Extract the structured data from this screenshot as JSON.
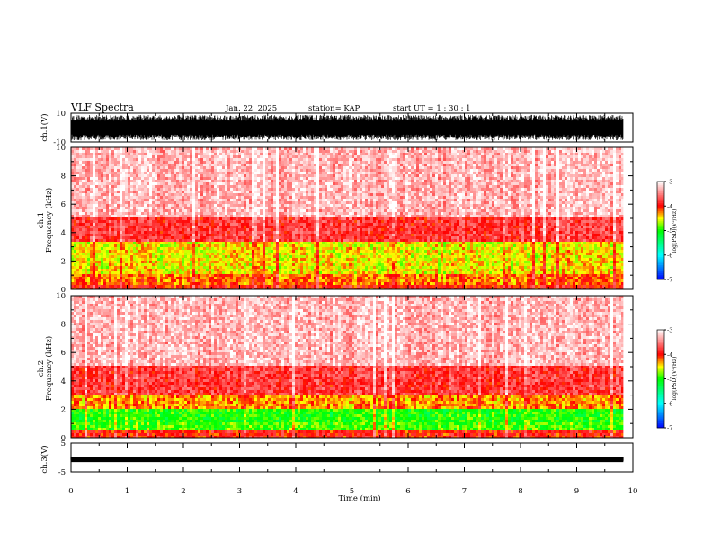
{
  "header": {
    "title": "VLF Spectra",
    "date": "Jan. 22, 2025",
    "station": "station= KAP",
    "start": "start  UT =   1 : 30 : 1"
  },
  "chart_data": [
    {
      "type": "line",
      "panel": "ch1-waveform",
      "ylabel": "ch.1(V)",
      "ylim": [
        -10,
        10
      ],
      "yticks": [
        "10",
        "-10"
      ],
      "xlim": [
        0,
        10
      ],
      "data_extent_min": 9.83,
      "description_values": {
        "typical_min": -8,
        "typical_max": 8
      }
    },
    {
      "type": "heatmap",
      "panel": "ch1-spectrogram",
      "ylabel": "ch.1\nFrequency (kHz)",
      "ylabel_top": "ch.1",
      "ylabel_bottom": "Frequency (kHz)",
      "ylim": [
        0,
        10
      ],
      "yticks": [
        "0",
        "2",
        "4",
        "6",
        "8",
        "10"
      ],
      "xlim": [
        0,
        10
      ],
      "bands": [
        {
          "from": 0,
          "to": 0.4,
          "level": -4.0
        },
        {
          "from": 0.4,
          "to": 1.0,
          "level": -4.2
        },
        {
          "from": 1.0,
          "to": 3.4,
          "level": -4.5
        },
        {
          "from": 3.4,
          "to": 5.0,
          "level": -3.8
        },
        {
          "from": 5.0,
          "to": 10.0,
          "level": -3.3
        }
      ]
    },
    {
      "type": "heatmap",
      "panel": "ch2-spectrogram",
      "ylabel_top": "ch.2",
      "ylabel_bottom": "Frequency (kHz)",
      "ylim": [
        0,
        10
      ],
      "yticks": [
        "0",
        "2",
        "4",
        "6",
        "8",
        "10"
      ],
      "xlim": [
        0,
        10
      ],
      "bands": [
        {
          "from": 0,
          "to": 0.5,
          "level": -4.0
        },
        {
          "from": 0.5,
          "to": 1.0,
          "level": -4.9
        },
        {
          "from": 1.0,
          "to": 2.0,
          "level": -5.0
        },
        {
          "from": 2.0,
          "to": 3.0,
          "level": -4.3
        },
        {
          "from": 3.0,
          "to": 5.0,
          "level": -3.8
        },
        {
          "from": 5.0,
          "to": 10.0,
          "level": -3.3
        }
      ]
    },
    {
      "type": "line",
      "panel": "ch3-waveform",
      "ylabel": "ch.3(V)",
      "ylim": [
        -5,
        5
      ],
      "yticks": [
        "5",
        "-5"
      ],
      "xlim": [
        0,
        10
      ],
      "data_extent_min": 9.83,
      "description_values": {
        "typical_min": -1.2,
        "typical_max": 0
      }
    }
  ],
  "x_axis": {
    "label": "Time (min)",
    "ticks": [
      "0",
      "1",
      "2",
      "3",
      "4",
      "5",
      "6",
      "7",
      "8",
      "9",
      "10"
    ]
  },
  "colorbar": {
    "range": [
      -7,
      -3
    ],
    "ticks": [
      "-3",
      "-4",
      "-5",
      "-6",
      "-7"
    ],
    "label": "log(PSD)(V²/Hz)",
    "colors": [
      "#0000ff",
      "#00ffff",
      "#00ff00",
      "#ffff00",
      "#ff0000",
      "#ffffff"
    ]
  }
}
